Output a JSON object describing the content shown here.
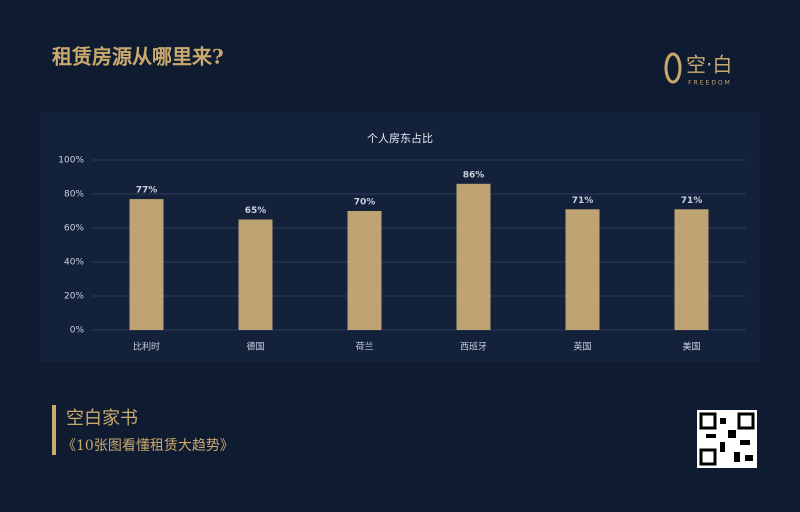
{
  "header": {
    "title": "租赁房源从哪里来?",
    "logo": "空·白",
    "logo_sub": "FREEDOM"
  },
  "chart_data": {
    "type": "bar",
    "title": "个人房东占比",
    "categories": [
      "比利时",
      "德国",
      "荷兰",
      "西班牙",
      "英国",
      "美国"
    ],
    "values": [
      77,
      65,
      70,
      86,
      71,
      71
    ],
    "value_labels": [
      "77%",
      "65%",
      "70%",
      "86%",
      "71%",
      "71%"
    ],
    "color": "#bfa373",
    "ylim": [
      0,
      100
    ],
    "yticks": [
      {
        "value": 0,
        "label": "0%"
      },
      {
        "value": 20,
        "label": "20%"
      },
      {
        "value": 40,
        "label": "40%"
      },
      {
        "value": 60,
        "label": "60%"
      },
      {
        "value": 80,
        "label": "80%"
      },
      {
        "value": 100,
        "label": "100%"
      }
    ],
    "grid": true
  },
  "footer": {
    "brand": "空白家书",
    "book": "《10张图看懂租赁大趋势》"
  }
}
